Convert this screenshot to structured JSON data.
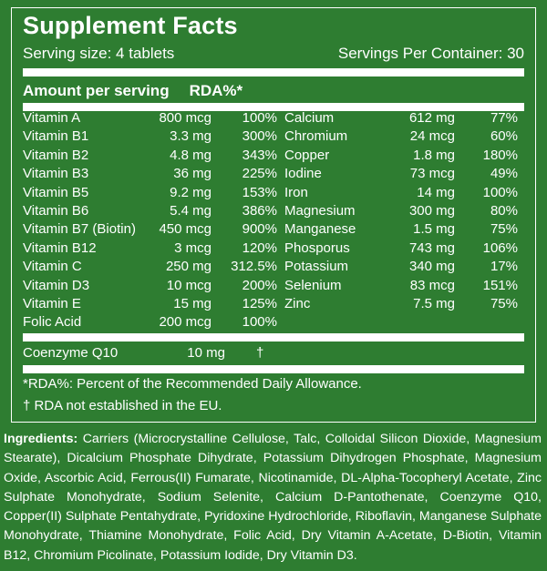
{
  "title": "Supplement Facts",
  "serving_size": "Serving size: 4 tablets",
  "servings_per_container": "Servings Per Container: 30",
  "amount_label": "Amount per serving",
  "rda_label": "RDA%*",
  "left_nutrients": [
    {
      "name": "Vitamin A",
      "amount": "800 mcg",
      "rda": "100%"
    },
    {
      "name": "Vitamin B1",
      "amount": "3.3 mg",
      "rda": "300%"
    },
    {
      "name": "Vitamin B2",
      "amount": "4.8 mg",
      "rda": "343%"
    },
    {
      "name": "Vitamin B3",
      "amount": "36 mg",
      "rda": "225%"
    },
    {
      "name": "Vitamin B5",
      "amount": "9.2 mg",
      "rda": "153%"
    },
    {
      "name": "Vitamin B6",
      "amount": "5.4 mg",
      "rda": "386%"
    },
    {
      "name": "Vitamin B7 (Biotin)",
      "amount": "450 mcg",
      "rda": "900%"
    },
    {
      "name": "Vitamin B12",
      "amount": "3 mcg",
      "rda": "120%"
    },
    {
      "name": "Vitamin C",
      "amount": "250 mg",
      "rda": "312.5%"
    },
    {
      "name": "Vitamin D3",
      "amount": "10 mcg",
      "rda": "200%"
    },
    {
      "name": "Vitamin E",
      "amount": "15 mg",
      "rda": "125%"
    },
    {
      "name": "Folic Acid",
      "amount": "200 mcg",
      "rda": "100%"
    }
  ],
  "right_nutrients": [
    {
      "name": "Calcium",
      "amount": "612 mg",
      "rda": "77%"
    },
    {
      "name": "Chromium",
      "amount": "24 mcg",
      "rda": "60%"
    },
    {
      "name": "Copper",
      "amount": "1.8 mg",
      "rda": "180%"
    },
    {
      "name": "Iodine",
      "amount": "73 mcg",
      "rda": "49%"
    },
    {
      "name": "Iron",
      "amount": "14 mg",
      "rda": "100%"
    },
    {
      "name": "Magnesium",
      "amount": "300 mg",
      "rda": "80%"
    },
    {
      "name": "Manganese",
      "amount": "1.5 mg",
      "rda": "75%"
    },
    {
      "name": "Phosporus",
      "amount": "743 mg",
      "rda": "106%"
    },
    {
      "name": "Potassium",
      "amount": "340 mg",
      "rda": "17%"
    },
    {
      "name": "Selenium",
      "amount": "83 mcg",
      "rda": "151%"
    },
    {
      "name": "Zinc",
      "amount": "7.5 mg",
      "rda": "75%"
    }
  ],
  "coenzyme": {
    "name": "Coenzyme Q10",
    "amount": "10 mg",
    "rda": "†"
  },
  "footnote_rda": "*RDA%: Percent of the Recommended Daily Allowance.",
  "footnote_eu": "† RDA not established in the EU.",
  "ingredients_label": "Ingredients:",
  "ingredients_text": "Carriers (Microcrystalline Cellulose, Talc, Colloidal Silicon Dioxide, Magnesium Stearate), Dicalcium Phosphate Dihydrate, Potassium Dihydrogen Phosphate, Magnesium Oxide, Ascorbic Acid, Ferrous(II) Fumarate, Nicotinamide, DL-Alpha-Tocopheryl Acetate, Zinc Sulphate Monohydrate, Sodium Selenite, Calcium D-Pantothenate, Coenzyme Q10, Copper(II) Sulphate Pentahydrate, Pyridoxine Hydrochloride, Riboflavin, Manganese Sulphate Monohydrate, Thiamine Monohydrate, Folic Acid, Dry Vitamin A-Acetate, D-Biotin, Vitamin B12, Chromium Picolinate, Potassium Iodide, Dry Vitamin D3."
}
